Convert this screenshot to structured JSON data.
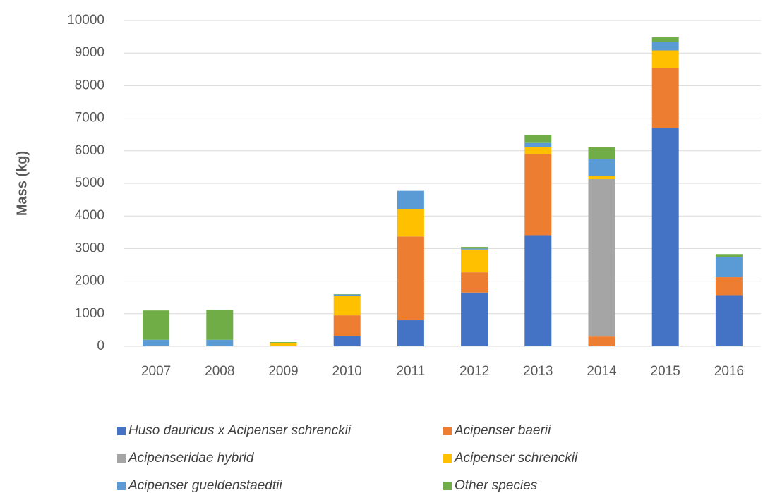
{
  "chart_data": {
    "type": "stacked_bar",
    "y_label": "Mass (kg)",
    "categories": [
      "2007",
      "2008",
      "2009",
      "2010",
      "2011",
      "2012",
      "2013",
      "2014",
      "2015",
      "2016"
    ],
    "series": [
      {
        "name": "Huso dauricus x Acipenser schrenckii",
        "color": "#4472c4",
        "values": [
          0,
          0,
          0,
          320,
          800,
          1650,
          3410,
          0,
          6700,
          1570
        ]
      },
      {
        "name": "Acipenser baerii",
        "color": "#ed7d31",
        "values": [
          0,
          0,
          0,
          630,
          2570,
          620,
          2490,
          300,
          1850,
          550
        ]
      },
      {
        "name": "Acipenseridae hybrid",
        "color": "#a5a5a5",
        "values": [
          0,
          0,
          0,
          0,
          0,
          0,
          0,
          4830,
          0,
          0
        ]
      },
      {
        "name": "Acipenser schrenckii",
        "color": "#ffc000",
        "values": [
          0,
          0,
          110,
          600,
          850,
          700,
          210,
          100,
          530,
          0
        ]
      },
      {
        "name": "Acipenser gueldenstaedtii",
        "color": "#5b9bd5",
        "values": [
          200,
          200,
          0,
          40,
          550,
          30,
          130,
          510,
          260,
          620
        ]
      },
      {
        "name": "Other species",
        "color": "#70ad47",
        "values": [
          900,
          920,
          20,
          10,
          0,
          50,
          240,
          370,
          140,
          90
        ]
      }
    ],
    "ylim": [
      0,
      10000
    ],
    "yticks": [
      0,
      1000,
      2000,
      3000,
      4000,
      5000,
      6000,
      7000,
      8000,
      9000,
      10000
    ],
    "grid": true
  }
}
